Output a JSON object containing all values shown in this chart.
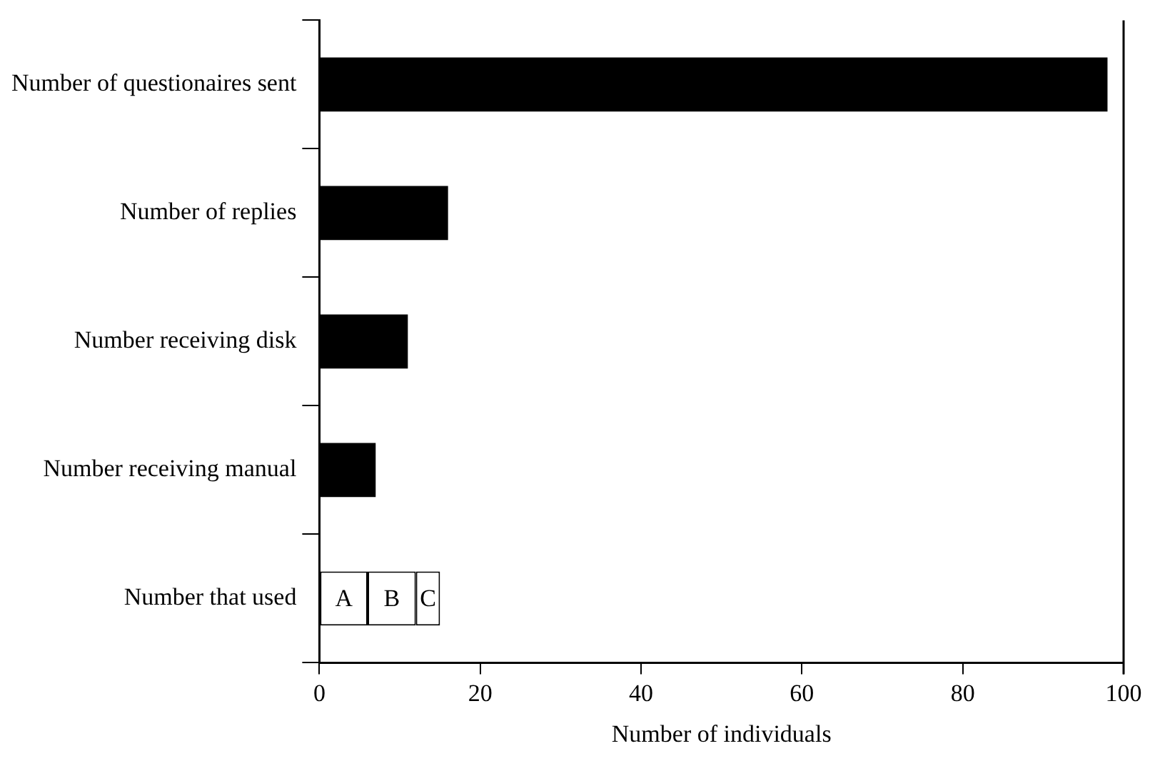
{
  "chart_data": {
    "type": "bar",
    "orientation": "horizontal",
    "stacked": true,
    "xlabel": "Number of individuals",
    "categories": [
      "Number of questionaires sent",
      "Number of replies",
      "Number receiving disk",
      "Number receiving manual",
      "Number that used"
    ],
    "series": [
      {
        "color": "#000000",
        "values": [
          98,
          16,
          11,
          7,
          null
        ]
      },
      {
        "name": "A",
        "color": "#ffffff",
        "values": [
          null,
          null,
          null,
          null,
          6
        ]
      },
      {
        "name": "B",
        "color": "#ffffff",
        "values": [
          null,
          null,
          null,
          null,
          6
        ]
      },
      {
        "name": "C",
        "color": "#ffffff",
        "values": [
          null,
          null,
          null,
          null,
          3
        ]
      }
    ],
    "xlim": [
      0,
      100
    ],
    "xticks": [
      0,
      20,
      40,
      60,
      80,
      100
    ],
    "grid": false,
    "legend": false
  }
}
